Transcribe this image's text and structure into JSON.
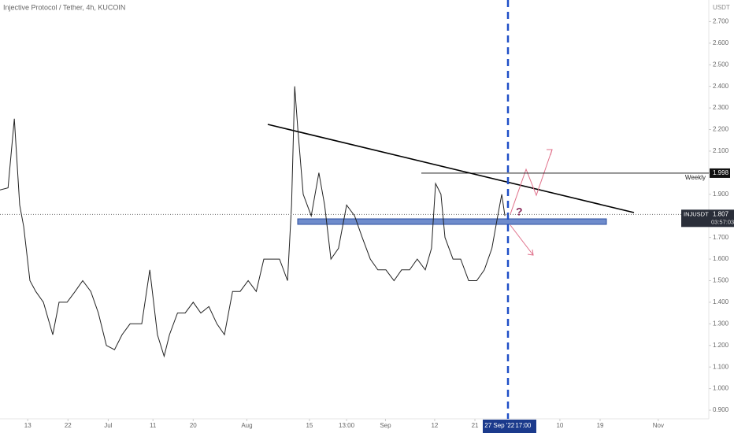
{
  "chart_data": {
    "type": "line",
    "title": "Injective Protocol / Tether, 4h, KUCOIN",
    "y_unit": "USDT",
    "x": [
      5.8,
      7.6,
      9.0,
      10.2,
      11.1,
      12.5,
      13.8,
      15.5,
      17.6,
      19.0,
      20.8,
      22.6,
      24.3,
      26.1,
      27.8,
      29.6,
      31.4,
      33.1,
      34.9,
      37.5,
      39.3,
      41.0,
      42.5,
      43.7,
      45.5,
      47.2,
      49.0,
      50.7,
      52.5,
      54.3,
      56.0,
      57.8,
      59.5,
      61.3,
      63.1,
      64.8,
      66.6,
      68.3,
      70.1,
      71.0,
      71.7,
      72.4,
      73.6,
      75.4,
      77.1,
      78.4,
      79.8,
      81.5,
      83.3,
      85.1,
      86.8,
      88.6,
      90.3,
      92.1,
      93.9,
      95.6,
      97.4,
      99.1,
      100.9,
      102.3,
      103.2,
      104.4,
      105.3,
      107.1,
      108.8,
      110.6,
      112.4,
      114.1,
      115.8,
      117.1,
      118.0,
      118.7
    ],
    "series": [
      {
        "name": "INJUSDT",
        "color": "#222222",
        "values": [
          1.92,
          1.93,
          2.25,
          1.85,
          1.75,
          1.5,
          1.45,
          1.4,
          1.25,
          1.4,
          1.4,
          1.45,
          1.5,
          1.45,
          1.35,
          1.2,
          1.18,
          1.25,
          1.3,
          1.3,
          1.55,
          1.25,
          1.15,
          1.25,
          1.35,
          1.35,
          1.4,
          1.35,
          1.38,
          1.3,
          1.25,
          1.45,
          1.45,
          1.5,
          1.45,
          1.6,
          1.6,
          1.6,
          1.5,
          1.85,
          2.4,
          2.2,
          1.9,
          1.8,
          2.0,
          1.85,
          1.6,
          1.65,
          1.85,
          1.8,
          1.7,
          1.6,
          1.55,
          1.55,
          1.5,
          1.55,
          1.55,
          1.6,
          1.55,
          1.65,
          1.95,
          1.9,
          1.7,
          1.6,
          1.6,
          1.5,
          1.5,
          1.55,
          1.65,
          1.8,
          1.9,
          1.8
        ]
      }
    ],
    "xlim": [
      5.8,
      164.3
    ],
    "ylim": [
      0.86,
      2.8
    ],
    "xticks": [
      {
        "value": 12,
        "label": "13"
      },
      {
        "value": 21,
        "label": "22"
      },
      {
        "value": 30,
        "label": "Jul"
      },
      {
        "value": 40,
        "label": "11"
      },
      {
        "value": 49,
        "label": "20"
      },
      {
        "value": 61,
        "label": "Aug"
      },
      {
        "value": 75,
        "label": "15"
      },
      {
        "value": 83.3,
        "label": "13:00"
      },
      {
        "value": 92,
        "label": "Sep"
      },
      {
        "value": 103,
        "label": "12"
      },
      {
        "value": 112,
        "label": "21"
      },
      {
        "value": 117.5,
        "label": "27 Sep '22"
      },
      {
        "value": 122.8,
        "label": "17:00"
      },
      {
        "value": 131,
        "label": "10"
      },
      {
        "value": 140,
        "label": "19"
      },
      {
        "value": 153,
        "label": "Nov"
      }
    ],
    "yticks": [
      {
        "value": 0.9,
        "label": "0.900"
      },
      {
        "value": 1.0,
        "label": "1.000"
      },
      {
        "value": 1.1,
        "label": "1.100"
      },
      {
        "value": 1.2,
        "label": "1.200"
      },
      {
        "value": 1.3,
        "label": "1.300"
      },
      {
        "value": 1.4,
        "label": "1.400"
      },
      {
        "value": 1.5,
        "label": "1.500"
      },
      {
        "value": 1.6,
        "label": "1.600"
      },
      {
        "value": 1.7,
        "label": "1.700"
      },
      {
        "value": 1.8,
        "label": "1.800"
      },
      {
        "value": 1.9,
        "label": "1.900"
      },
      {
        "value": 2.0,
        "label": "2.000"
      },
      {
        "value": 2.1,
        "label": "2.100"
      },
      {
        "value": 2.2,
        "label": "2.200"
      },
      {
        "value": 2.3,
        "label": "2.300"
      },
      {
        "value": 2.4,
        "label": "2.400"
      },
      {
        "value": 2.5,
        "label": "2.500"
      },
      {
        "value": 2.6,
        "label": "2.600"
      },
      {
        "value": 2.7,
        "label": "2.700"
      }
    ],
    "grid": false,
    "weekly_level": {
      "label": "Weekly",
      "value": 1.998,
      "value_label": "1.998"
    },
    "last_price": {
      "symbol": "INJUSDT",
      "value": 1.807,
      "value_label": "1.807",
      "countdown": "03:57:03"
    },
    "annotation": "?"
  }
}
